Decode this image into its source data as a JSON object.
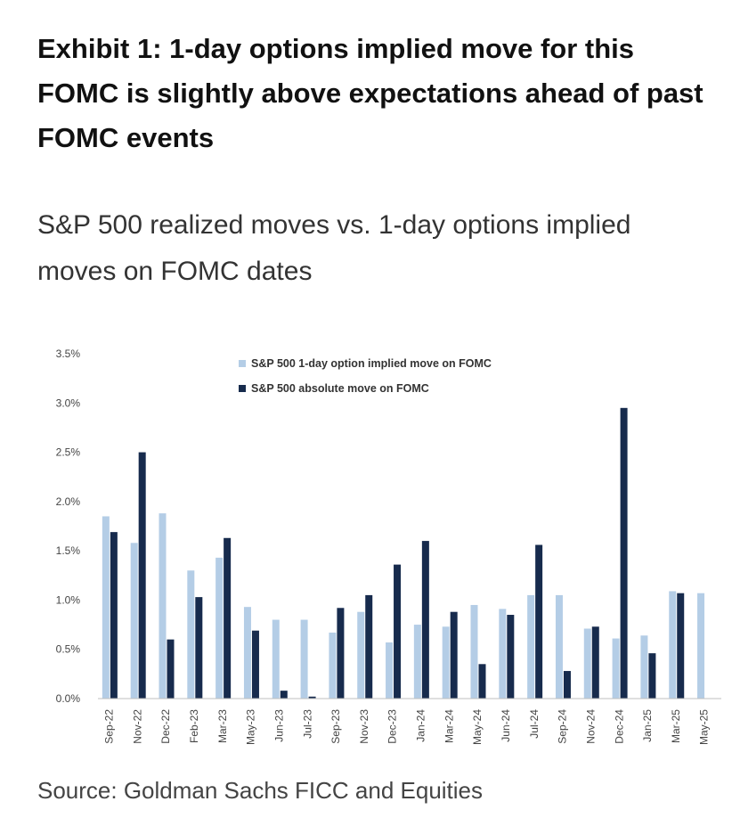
{
  "exhibit": {
    "title": "Exhibit 1: 1-day options implied move for this FOMC is slightly above expectations ahead of past FOMC events"
  },
  "source": "Source: Goldman Sachs FICC and Equities",
  "colors": {
    "implied": "#b4cde6",
    "absolute": "#172b4d",
    "axis": "#bfbfbf",
    "tick_text": "#444444"
  },
  "chart_data": {
    "type": "bar",
    "title": "S&P 500 realized moves vs. 1-day options implied moves on FOMC dates",
    "xlabel": "",
    "ylabel": "",
    "ylim": [
      0,
      3.5
    ],
    "yticks": [
      0,
      0.5,
      1.0,
      1.5,
      2.0,
      2.5,
      3.0,
      3.5
    ],
    "ytick_labels": [
      "0.0%",
      "0.5%",
      "1.0%",
      "1.5%",
      "2.0%",
      "2.5%",
      "3.0%",
      "3.5%"
    ],
    "grid": false,
    "legend_position": "top-center",
    "categories": [
      "Sep-22",
      "Nov-22",
      "Dec-22",
      "Feb-23",
      "Mar-23",
      "May-23",
      "Jun-23",
      "Jul-23",
      "Sep-23",
      "Nov-23",
      "Dec-23",
      "Jan-24",
      "Mar-24",
      "May-24",
      "Jun-24",
      "Jul-24",
      "Sep-24",
      "Nov-24",
      "Dec-24",
      "Jan-25",
      "Mar-25",
      "May-25"
    ],
    "series": [
      {
        "name": "S&P 500 1-day option implied move on FOMC",
        "values": [
          1.85,
          1.58,
          1.88,
          1.3,
          1.43,
          0.93,
          0.8,
          0.8,
          0.67,
          0.88,
          0.57,
          0.75,
          0.73,
          0.95,
          0.91,
          1.05,
          1.05,
          0.71,
          0.61,
          0.64,
          1.09,
          1.07
        ]
      },
      {
        "name": "S&P 500 absolute move on FOMC",
        "values": [
          1.69,
          2.5,
          0.6,
          1.03,
          1.63,
          0.69,
          0.08,
          0.02,
          0.92,
          1.05,
          1.36,
          1.6,
          0.88,
          0.35,
          0.85,
          1.56,
          0.28,
          0.73,
          2.95,
          0.46,
          1.07,
          null
        ]
      }
    ]
  }
}
